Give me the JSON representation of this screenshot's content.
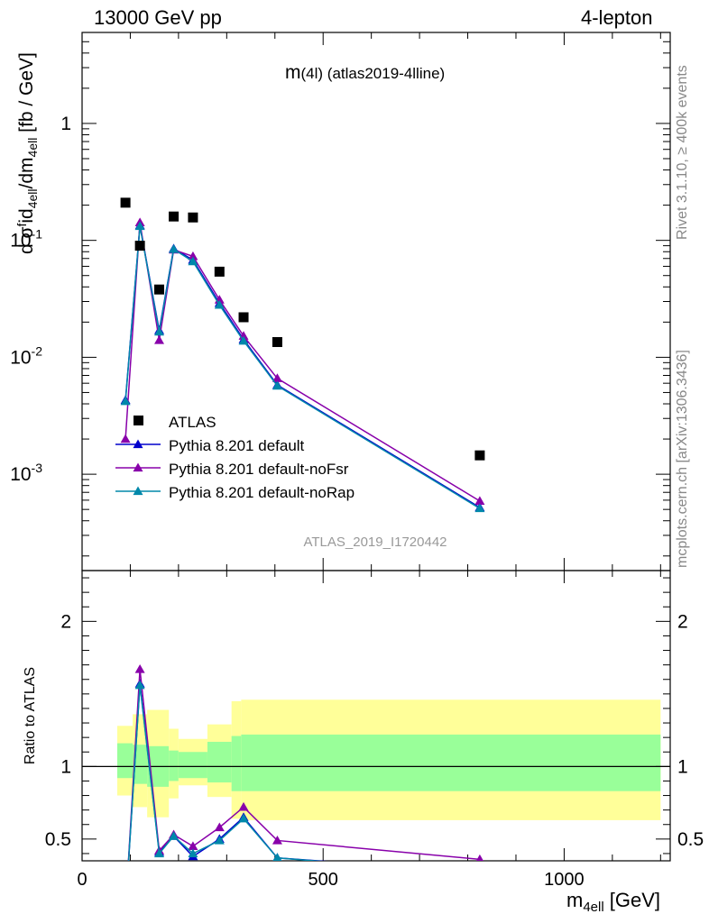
{
  "header": {
    "left": "13000 GeV pp",
    "right": "4-lepton"
  },
  "side_text": {
    "rivet": "Rivet 3.1.10, ≥ 400k events",
    "mcplots": "mcplots.cern.ch [arXiv:1306.3436]"
  },
  "chart_data": {
    "type": "scatter",
    "title": "m(4l) (atlas2019-4lline)",
    "watermark": "ATLAS_2019_I1720442",
    "xlabel": "m_4ell [GeV]",
    "ylabel_top": "d σ^f id_4ell/dm_4ell [fb / GeV]",
    "ylabel_ratio": "Ratio to ATLAS",
    "xlim": [
      0,
      1220
    ],
    "ylim_top": [
      0.00015,
      6
    ],
    "ylog_top": true,
    "ylim_ratio": [
      0.35,
      2.35
    ],
    "x_ticks": [
      "0",
      "500",
      "1000"
    ],
    "y_ticks_top": [
      "1",
      "10^-1",
      "10^-2",
      "10^-3"
    ],
    "y_ticks_ratio": [
      "0.5",
      "1",
      "2"
    ],
    "legend_position": "bottom-left",
    "data": {
      "name": "ATLAS",
      "color": "#000000",
      "x": [
        90,
        120,
        160,
        190,
        230,
        285,
        335,
        405,
        825
      ],
      "y": [
        0.21,
        0.09,
        0.038,
        0.16,
        0.157,
        0.054,
        0.022,
        0.0135,
        0.00145
      ]
    },
    "ratio_bands": {
      "edges": [
        73,
        105,
        135,
        180,
        200,
        260,
        310,
        330,
        1200
      ],
      "inner": [
        [
          0.92,
          1.16
        ],
        [
          0.88,
          1.15
        ],
        [
          0.86,
          1.14
        ],
        [
          0.9,
          1.11
        ],
        [
          0.92,
          1.1
        ],
        [
          0.89,
          1.17
        ],
        [
          0.83,
          1.21
        ],
        [
          0.83,
          1.22
        ],
        [
          0.83,
          1.22
        ]
      ],
      "outer": [
        [
          0.8,
          1.28
        ],
        [
          0.72,
          1.36
        ],
        [
          0.65,
          1.39
        ],
        [
          0.78,
          1.26
        ],
        [
          0.87,
          1.19
        ],
        [
          0.79,
          1.29
        ],
        [
          0.64,
          1.45
        ],
        [
          0.63,
          1.46
        ],
        [
          0.62,
          1.46
        ]
      ],
      "inner_color": "#99ff99",
      "outer_color": "#ffff99"
    },
    "series": [
      {
        "name": "Pythia 8.201 default",
        "color": "#0000cc",
        "x": [
          90,
          120,
          160,
          190,
          230,
          285,
          335,
          405,
          825
        ],
        "y": [
          0.0043,
          0.134,
          0.017,
          0.085,
          0.068,
          0.029,
          0.0142,
          0.0058,
          0.00052
        ],
        "ratio": [
          0.02,
          1.57,
          0.41,
          0.52,
          0.38,
          0.5,
          0.65,
          0.37,
          0.27
        ]
      },
      {
        "name": "Pythia 8.201 default-noFsr",
        "color": "#8800aa",
        "x": [
          90,
          120,
          160,
          190,
          230,
          285,
          335,
          405,
          825
        ],
        "y": [
          0.002,
          0.142,
          0.014,
          0.083,
          0.073,
          0.031,
          0.0152,
          0.0066,
          0.00059
        ],
        "ratio": [
          0.01,
          1.67,
          0.42,
          0.53,
          0.45,
          0.58,
          0.72,
          0.49,
          0.36
        ]
      },
      {
        "name": "Pythia 8.201 default-noRap",
        "color": "#0088aa",
        "x": [
          90,
          120,
          160,
          190,
          230,
          285,
          335,
          405,
          825
        ],
        "y": [
          0.0042,
          0.132,
          0.0165,
          0.084,
          0.066,
          0.028,
          0.0138,
          0.0057,
          0.00051
        ],
        "ratio": [
          0.02,
          1.56,
          0.4,
          0.52,
          0.4,
          0.49,
          0.64,
          0.37,
          0.26
        ]
      }
    ]
  }
}
